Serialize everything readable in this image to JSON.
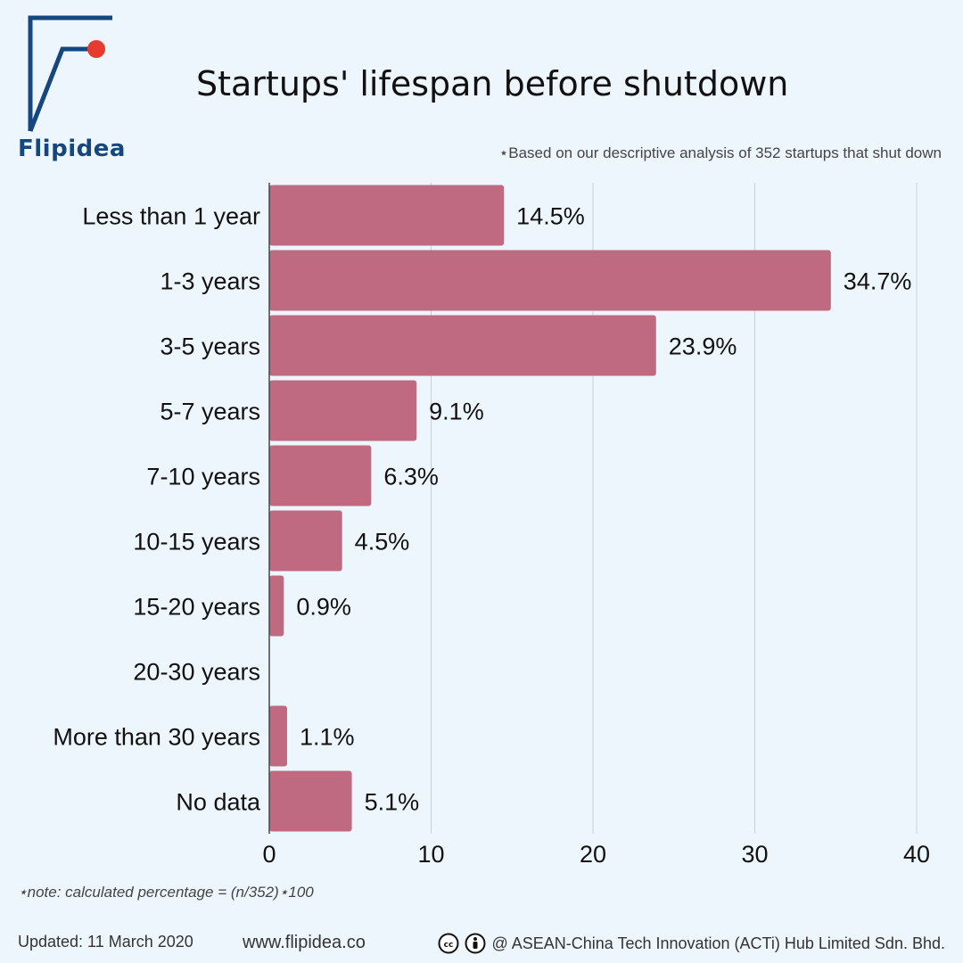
{
  "header": {
    "logo_text": "Flipidea",
    "title": "Startups' lifespan before shutdown",
    "subnote": "⋆Based on our descriptive analysis of 352 startups that shut down"
  },
  "chart_data": {
    "type": "bar",
    "orientation": "horizontal",
    "title": "Startups' lifespan before shutdown",
    "xlabel": "",
    "ylabel": "",
    "categories": [
      "Less than 1 year",
      "1-3 years",
      "3-5 years",
      "5-7 years",
      "7-10 years",
      "10-15 years",
      "15-20 years",
      "20-30 years",
      "More than 30 years",
      "No data"
    ],
    "values": [
      14.5,
      34.7,
      23.9,
      9.1,
      6.3,
      4.5,
      0.9,
      0,
      1.1,
      5.1
    ],
    "data_labels": [
      "14.5%",
      "34.7%",
      "23.9%",
      "9.1%",
      "6.3%",
      "4.5%",
      "0.9%",
      "",
      "1.1%",
      "5.1%"
    ],
    "xlim": [
      0,
      40
    ],
    "xticks": [
      0,
      10,
      20,
      30,
      40
    ],
    "grid": "vertical",
    "bar_color": "#c06a82",
    "grid_color": "#c9d0d6"
  },
  "footer": {
    "note": "⋆note: calculated percentage = (n/352)⋆100",
    "updated": "Updated: 11 March 2020",
    "website": "www.flipidea.co",
    "copyright": "@ ASEAN-China Tech Innovation (ACTi) Hub Limited Sdn. Bhd."
  },
  "colors": {
    "background": "#eef6fd",
    "logo_blue": "#16467e",
    "logo_dot": "#e63c2f"
  },
  "icons": [
    "cc-icon",
    "by-person-icon"
  ]
}
